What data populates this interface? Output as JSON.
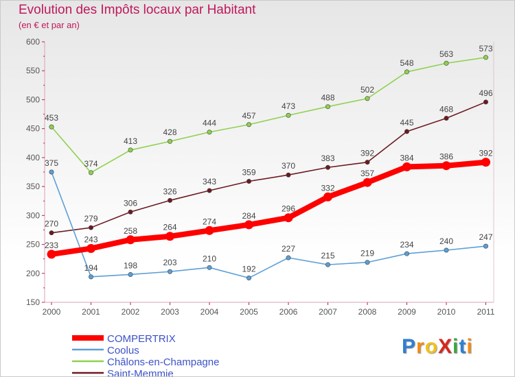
{
  "title": "Evolution des Impôts locaux par Habitant",
  "subtitle": "(en € et par an)",
  "brand": {
    "text": "ProXiti",
    "letters": [
      {
        "ch": "P",
        "color": "#2f7fd3"
      },
      {
        "ch": "r",
        "color": "#f28a16"
      },
      {
        "ch": "o",
        "color": "#f2c21a"
      },
      {
        "ch": "X",
        "color": "#d8261c"
      },
      {
        "ch": "i",
        "color": "#3aa640"
      },
      {
        "ch": "t",
        "color": "#2f7fd3"
      },
      {
        "ch": "i",
        "color": "#f28a16"
      }
    ]
  },
  "chart_data": {
    "type": "line",
    "title": "Evolution des Impôts locaux par Habitant",
    "subtitle": "(en € et par an)",
    "x": [
      "2000",
      "2001",
      "2002",
      "2003",
      "2004",
      "2005",
      "2006",
      "2007",
      "2008",
      "2009",
      "2010",
      "2011"
    ],
    "ylim": [
      150,
      600
    ],
    "yticks": [
      150,
      200,
      250,
      300,
      350,
      400,
      450,
      500,
      550,
      600
    ],
    "grid": false,
    "legend_position": "bottom-left",
    "series": [
      {
        "name": "Châlons-en-Champagne",
        "color": "#8fd14f",
        "bold": false,
        "values": [
          453,
          374,
          413,
          428,
          444,
          457,
          473,
          488,
          502,
          548,
          563,
          573
        ]
      },
      {
        "name": "Saint-Memmie",
        "color": "#6b1a20",
        "bold": false,
        "values": [
          270,
          279,
          306,
          326,
          343,
          359,
          370,
          383,
          392,
          445,
          468,
          496
        ]
      },
      {
        "name": "Coolus",
        "color": "#5c9fd6",
        "bold": false,
        "values": [
          375,
          194,
          198,
          203,
          210,
          192,
          227,
          215,
          219,
          234,
          240,
          247
        ]
      },
      {
        "name": "COMPERTRIX",
        "color": "#ff0000",
        "bold": true,
        "values": [
          233,
          243,
          258,
          264,
          274,
          284,
          296,
          332,
          357,
          384,
          386,
          392
        ]
      }
    ],
    "legend_order": [
      "COMPERTRIX",
      "Coolus",
      "Châlons-en-Champagne",
      "Saint-Memmie"
    ],
    "legend_label_color": "#3c52c8"
  }
}
